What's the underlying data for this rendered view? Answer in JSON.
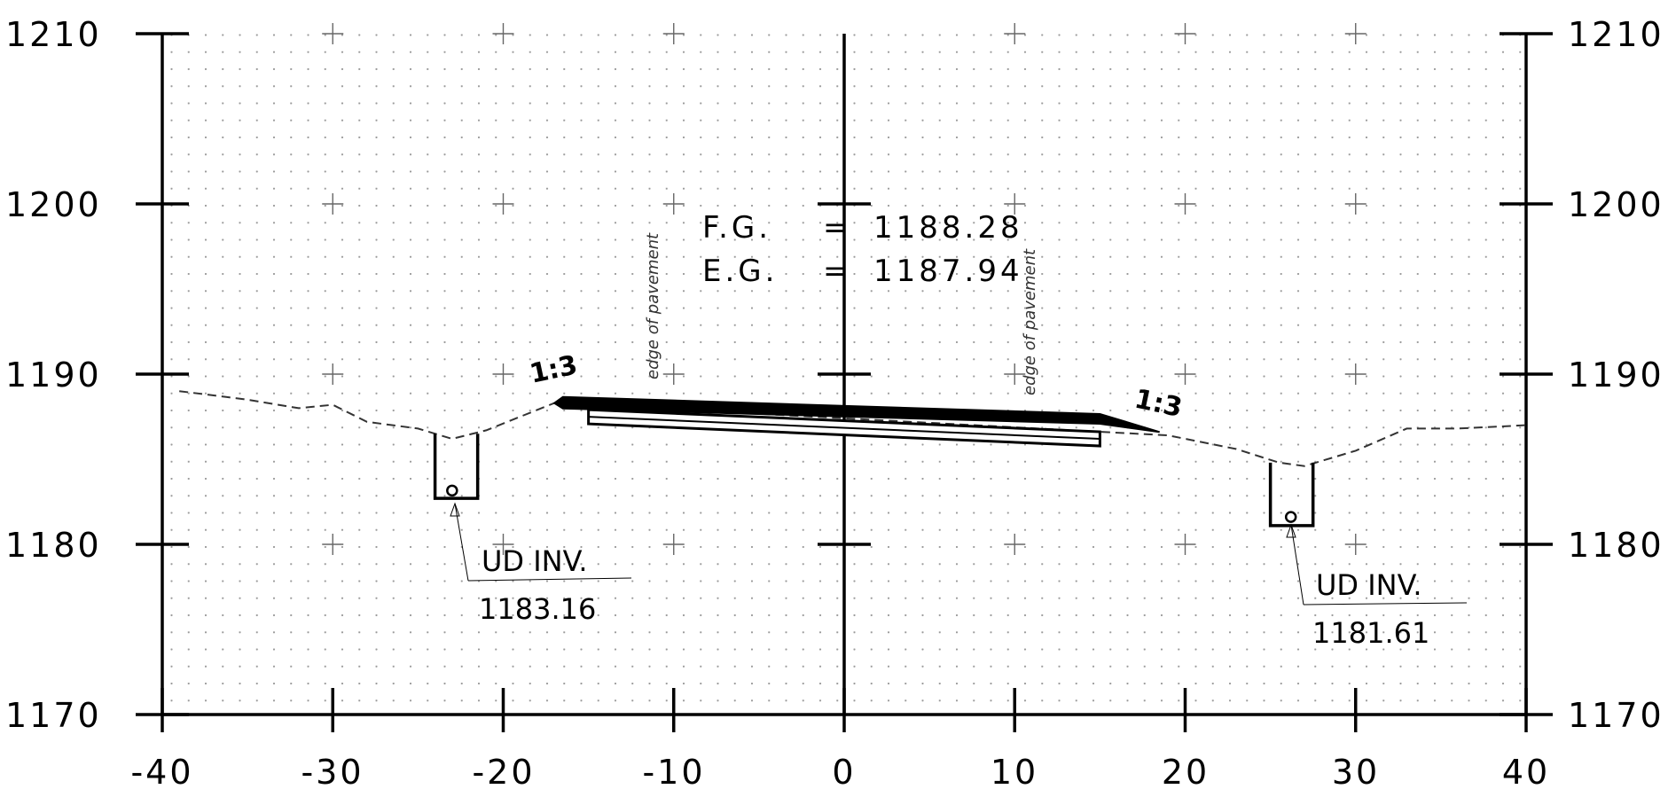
{
  "title": "",
  "axes": {
    "x_ticks": [
      "-40",
      "-30",
      "-20",
      "-10",
      "0",
      "10",
      "20",
      "30",
      "40"
    ],
    "y_ticks": [
      "1170",
      "1180",
      "1190",
      "1200",
      "1210"
    ],
    "x_range": [
      -40,
      40
    ],
    "y_range": [
      1170,
      1210
    ],
    "grid": "dotted background with plus-sign markers every 10 units"
  },
  "grade_block": {
    "fg_label": "F.G.",
    "fg_eq": "=",
    "fg_value": "1188.28",
    "eg_label": "E.G.",
    "eg_eq": "=",
    "eg_value": "1187.94"
  },
  "edge_labels": {
    "left": "edge of pavement",
    "right": "edge of pavement"
  },
  "slopes": {
    "left": "1:3",
    "right": "1:3"
  },
  "underdrains": [
    {
      "label": "UD INV.",
      "value": "1183.16",
      "offset": -23,
      "invert_elev": 1183.16
    },
    {
      "label": "UD INV.",
      "value": "1181.61",
      "offset": 26.2,
      "invert_elev": 1181.61
    }
  ],
  "existing_ground": [
    [
      -39,
      1189.0
    ],
    [
      -35,
      1188.5
    ],
    [
      -32,
      1188.0
    ],
    [
      -30,
      1188.2
    ],
    [
      -28,
      1187.2
    ],
    [
      -25,
      1186.8
    ],
    [
      -23,
      1186.2
    ],
    [
      -21,
      1186.7
    ],
    [
      -19,
      1187.5
    ],
    [
      -17,
      1188.3
    ],
    [
      19,
      1186.4
    ],
    [
      23,
      1185.6
    ],
    [
      25.5,
      1184.8
    ],
    [
      27,
      1184.6
    ],
    [
      30,
      1185.5
    ],
    [
      33,
      1186.8
    ],
    [
      36,
      1186.8
    ],
    [
      40,
      1187.0
    ]
  ],
  "finished_grade": {
    "top": [
      [
        -16.5,
        1188.4
      ],
      [
        15,
        1187.5
      ]
    ],
    "bottom_left": [
      -15.0,
      1187.6
    ],
    "bottom_right": [
      15.0,
      1186.3
    ],
    "toe_left": [
      -17.0,
      1188.3
    ],
    "toe_right": [
      18.5,
      1186.6
    ]
  },
  "colors": {
    "line": "#000000",
    "grid_dot": "#9a9a9a",
    "ground": "#333333"
  }
}
